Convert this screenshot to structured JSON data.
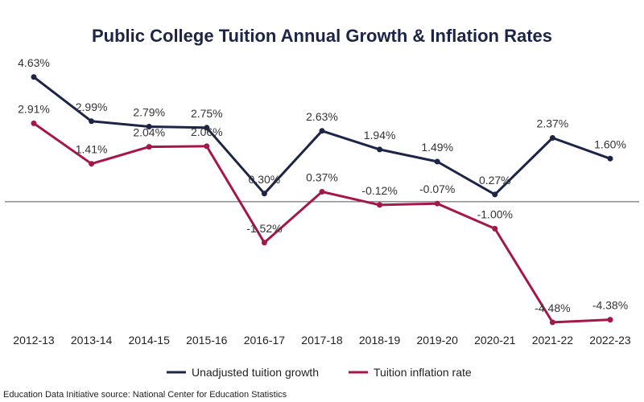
{
  "chart_data": {
    "type": "line",
    "title": "Public College Tuition Annual Growth & Inflation Rates",
    "categories": [
      "2012-13",
      "2013-14",
      "2014-15",
      "2015-16",
      "2016-17",
      "2017-18",
      "2018-19",
      "2019-20",
      "2020-21",
      "2021-22",
      "2022-23"
    ],
    "series": [
      {
        "name": "Unadjusted tuition growth",
        "color": "#1c2447",
        "values": [
          4.63,
          2.99,
          2.79,
          2.75,
          0.3,
          2.63,
          1.94,
          1.49,
          0.27,
          2.37,
          1.6
        ],
        "labels": [
          "4.63%",
          "2.99%",
          "2.79%",
          "2.75%",
          "0.30%",
          "2.63%",
          "1.94%",
          "1.49%",
          "0.27%",
          "2.37%",
          "1.60%"
        ]
      },
      {
        "name": "Tuition inflation rate",
        "color": "#a5174a",
        "values": [
          2.91,
          1.41,
          2.04,
          2.06,
          -1.52,
          0.37,
          -0.12,
          -0.07,
          -1.0,
          -4.48,
          -4.38
        ],
        "labels": [
          "2.91%",
          "1.41%",
          "2.04%",
          "2.06%",
          "-1.52%",
          "0.37%",
          "-0.12%",
          "-0.07%",
          "-1.00%",
          "-4.48%",
          "-4.38%"
        ]
      }
    ],
    "ylim": [
      -4.9,
      5.7
    ],
    "zero_line": true,
    "legend_position": "bottom-center",
    "xlabel": "",
    "ylabel": ""
  },
  "title_color": "#1c2447",
  "source": "Education Data Initiative source: National Center for Education Statistics"
}
